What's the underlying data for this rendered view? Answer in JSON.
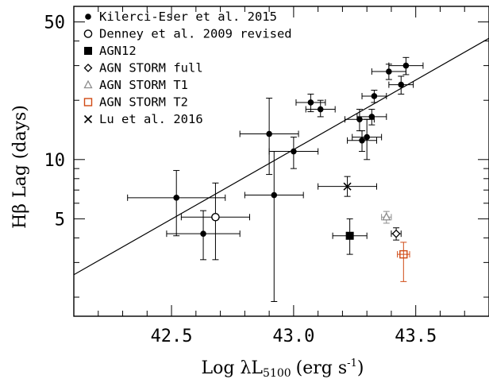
{
  "chart_data": {
    "type": "scatter",
    "title": "",
    "xlabel": "Log λL",
    "xlabel_sub": "5100",
    "xlabel_units": "(erg s",
    "xlabel_units_sup": "-1",
    "xlabel_units_end": ")",
    "ylabel": "Hβ Lag (days)",
    "xlim": [
      42.1,
      43.8
    ],
    "ylim": [
      1.6,
      60
    ],
    "yscale": "log",
    "x_ticks": [
      42.5,
      43.0,
      43.5
    ],
    "x_tick_labels": [
      "42.5",
      "43.0",
      "43.5"
    ],
    "y_ticks": [
      5,
      10,
      50
    ],
    "y_tick_labels": [
      "5",
      "10",
      "50"
    ],
    "legend_position": "top-left",
    "series": [
      {
        "name": "Kilerci-Eser et al. 2015",
        "marker": "filled-circle",
        "color": "#000000",
        "points": [
          {
            "x": 42.52,
            "y": 6.4,
            "xerr": 0.2,
            "ylo": 4.1,
            "yhi": 8.8
          },
          {
            "x": 42.63,
            "y": 4.2,
            "xerr": 0.15,
            "ylo": 3.1,
            "yhi": 5.5
          },
          {
            "x": 42.9,
            "y": 13.5,
            "xerr": 0.12,
            "ylo": 8.4,
            "yhi": 20.5
          },
          {
            "x": 42.92,
            "y": 6.6,
            "xerr": 0.12,
            "ylo": 1.9,
            "yhi": 11.0
          },
          {
            "x": 43.0,
            "y": 11.0,
            "xerr": 0.1,
            "ylo": 9.0,
            "yhi": 13.0
          },
          {
            "x": 43.07,
            "y": 19.5,
            "xerr": 0.06,
            "ylo": 17.5,
            "yhi": 21.5
          },
          {
            "x": 43.11,
            "y": 18.0,
            "xerr": 0.06,
            "ylo": 16.5,
            "yhi": 20.0
          },
          {
            "x": 43.27,
            "y": 16.0,
            "xerr": 0.06,
            "ylo": 14.0,
            "yhi": 18.0
          },
          {
            "x": 43.28,
            "y": 12.5,
            "xerr": 0.06,
            "ylo": 11.0,
            "yhi": 14.0
          },
          {
            "x": 43.3,
            "y": 13.0,
            "xerr": 0.06,
            "ylo": 10.0,
            "yhi": 16.0
          },
          {
            "x": 43.32,
            "y": 16.5,
            "xerr": 0.06,
            "ylo": 15.0,
            "yhi": 18.0
          },
          {
            "x": 43.33,
            "y": 21.0,
            "xerr": 0.05,
            "ylo": 19.5,
            "yhi": 22.5
          },
          {
            "x": 43.39,
            "y": 28.0,
            "xerr": 0.07,
            "ylo": 25.5,
            "yhi": 30.5
          },
          {
            "x": 43.44,
            "y": 24.0,
            "xerr": 0.05,
            "ylo": 21.5,
            "yhi": 26.5
          },
          {
            "x": 43.46,
            "y": 30.0,
            "xerr": 0.07,
            "ylo": 27.0,
            "yhi": 33.0
          }
        ]
      },
      {
        "name": "Denney et al. 2009 revised",
        "marker": "open-circle",
        "color": "#000000",
        "points": [
          {
            "x": 42.68,
            "y": 5.1,
            "xerr": 0.14,
            "ylo": 3.1,
            "yhi": 7.6
          }
        ]
      },
      {
        "name": "AGN12",
        "marker": "filled-square",
        "color": "#000000",
        "points": [
          {
            "x": 43.23,
            "y": 4.1,
            "xerr": 0.07,
            "ylo": 3.3,
            "yhi": 5.0
          }
        ]
      },
      {
        "name": "AGN STORM full",
        "marker": "open-diamond",
        "color": "#000000",
        "points": [
          {
            "x": 43.42,
            "y": 4.2,
            "xerr": 0.02,
            "ylo": 3.9,
            "yhi": 4.5
          }
        ]
      },
      {
        "name": "AGN STORM T1",
        "marker": "open-triangle",
        "color": "#8c8c8c",
        "points": [
          {
            "x": 43.38,
            "y": 5.1,
            "xerr": 0.02,
            "ylo": 4.75,
            "yhi": 5.45
          }
        ]
      },
      {
        "name": "AGN STORM T2",
        "marker": "open-square",
        "color": "#d04a14",
        "points": [
          {
            "x": 43.45,
            "y": 3.3,
            "xerr": 0.025,
            "ylo": 2.4,
            "yhi": 3.8
          }
        ]
      },
      {
        "name": "Lu et al. 2016",
        "marker": "cross",
        "color": "#000000",
        "points": [
          {
            "x": 43.22,
            "y": 7.3,
            "xerr": 0.12,
            "ylo": 6.5,
            "yhi": 8.2
          }
        ]
      }
    ],
    "fit_line": {
      "x": [
        42.1,
        43.8
      ],
      "y": [
        2.6,
        41.3
      ]
    }
  }
}
